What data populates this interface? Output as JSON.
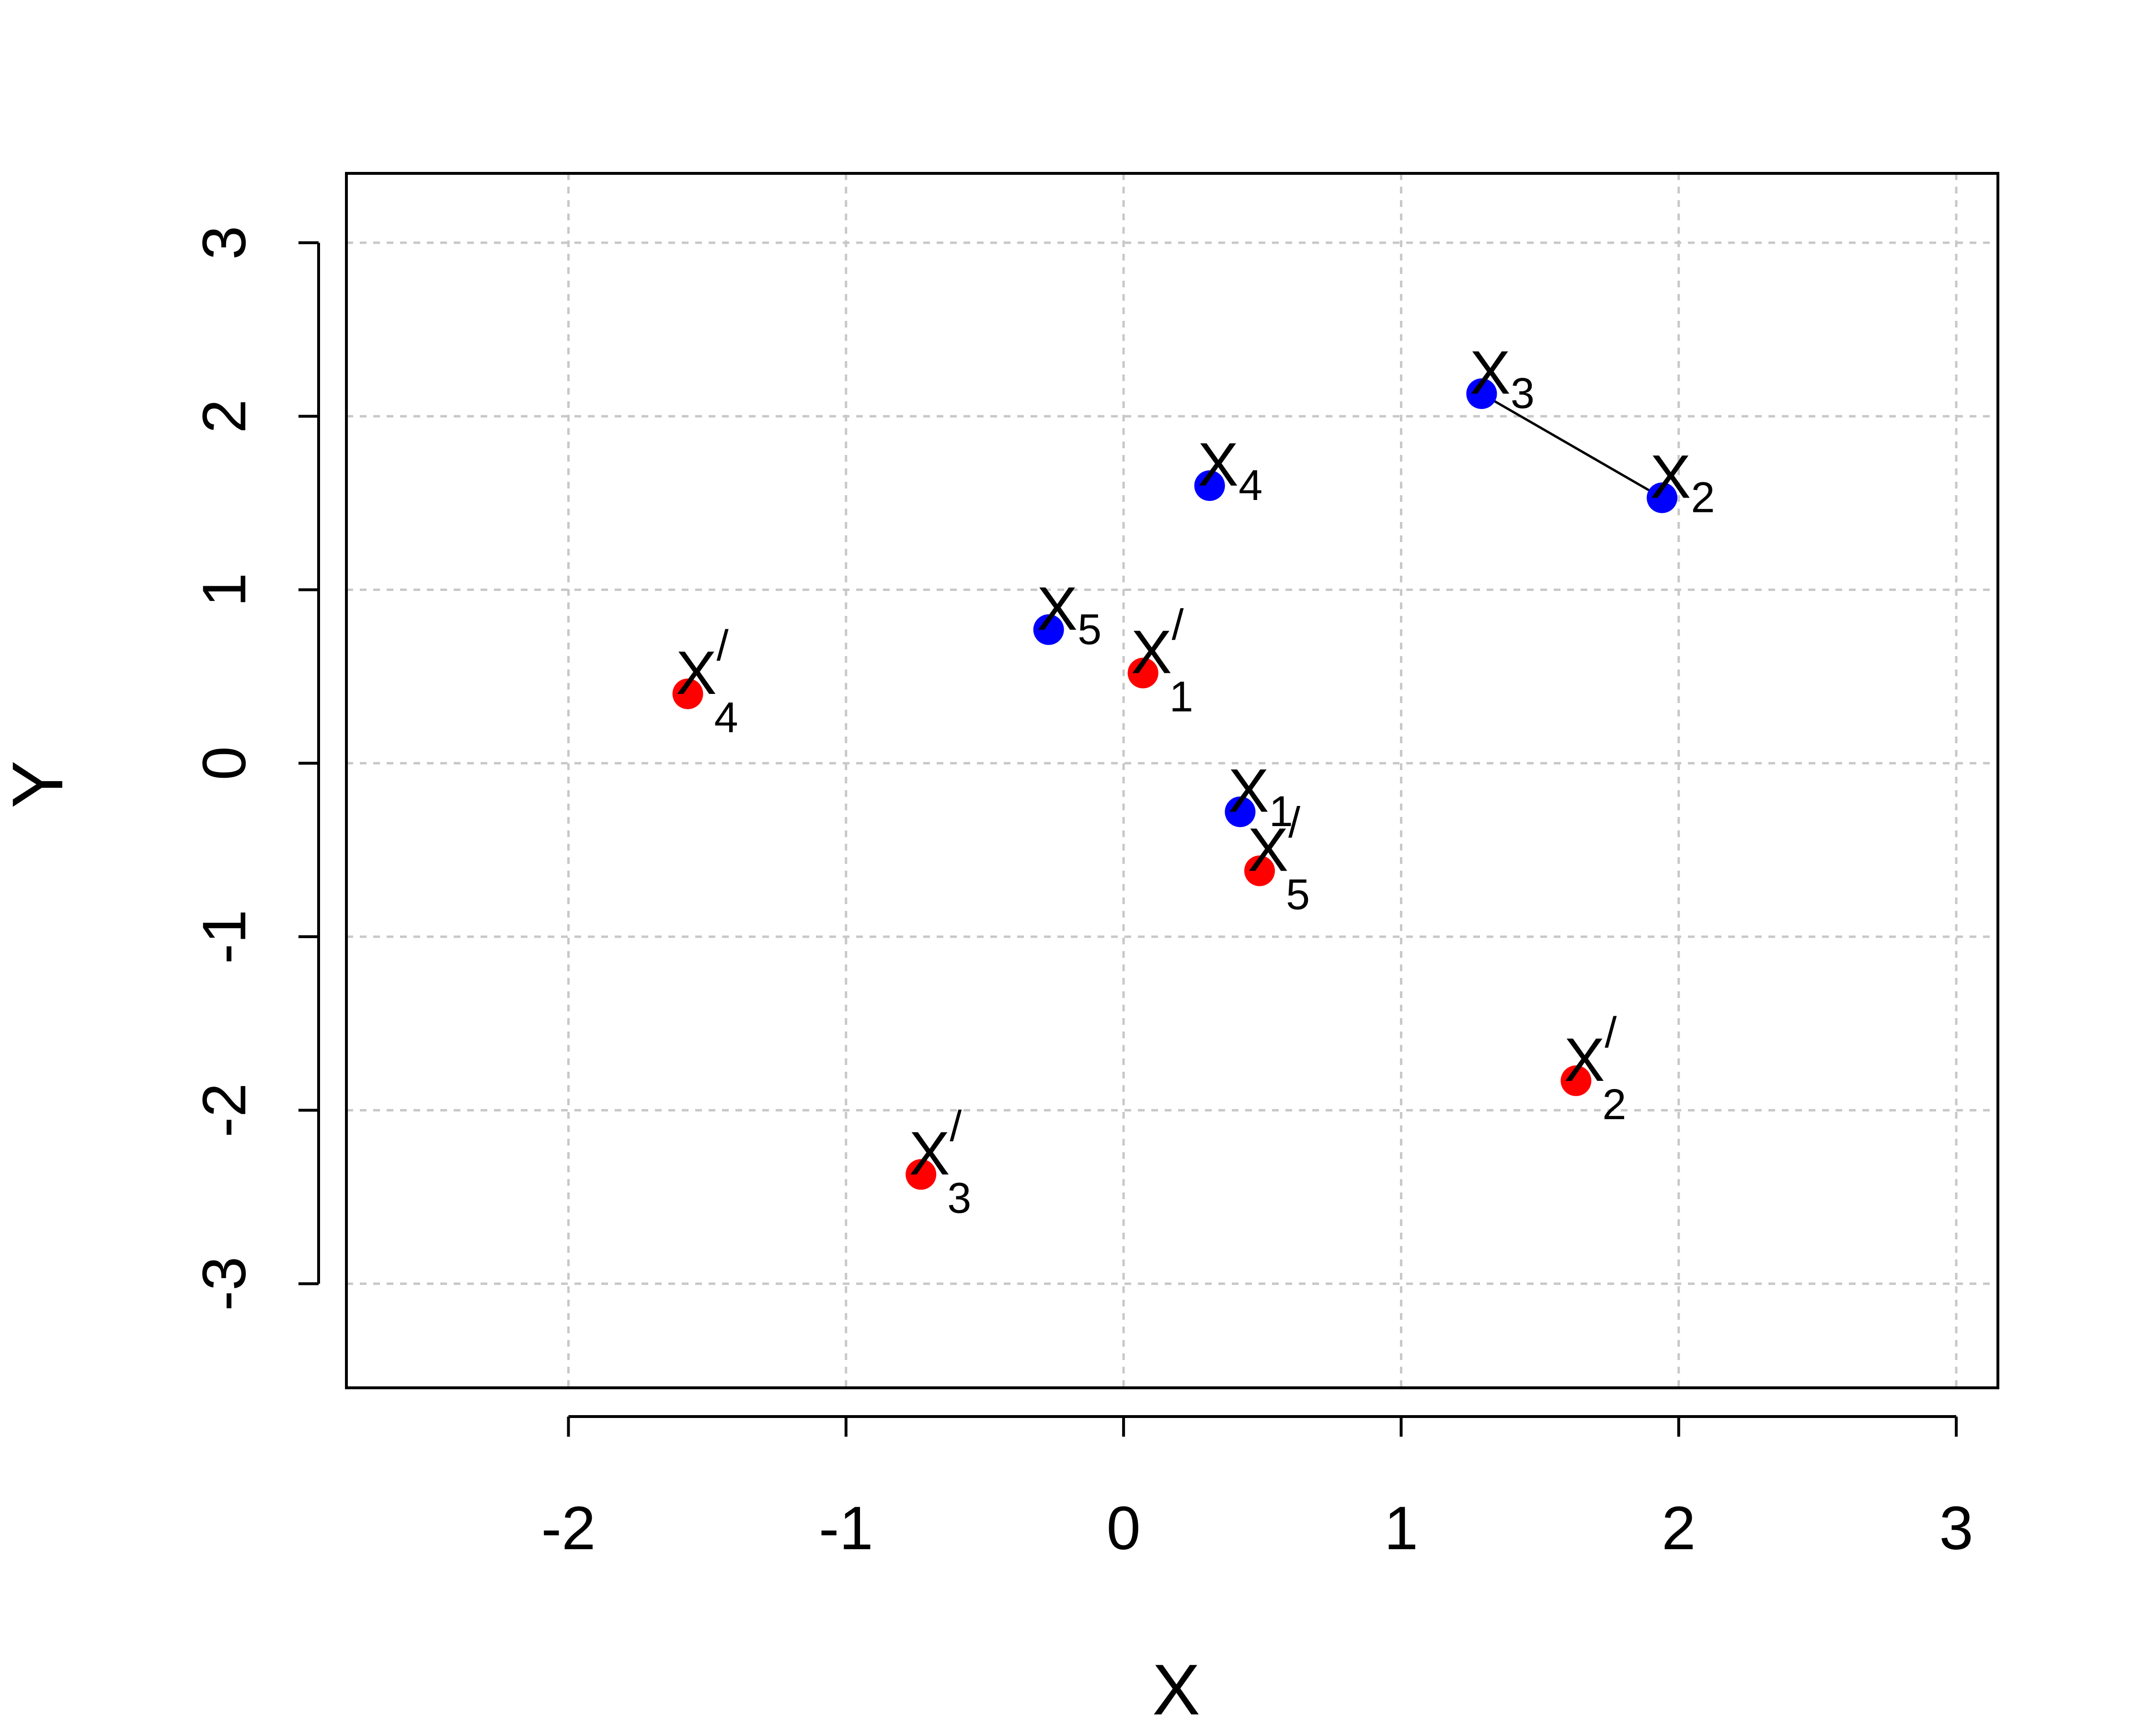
{
  "chart_data": {
    "type": "scatter",
    "xlabel": "X",
    "ylabel": "Y",
    "xlim": [
      -2.8,
      3.15
    ],
    "ylim": [
      -3.6,
      3.4
    ],
    "x_ticks": [
      -2,
      -1,
      0,
      1,
      2,
      3
    ],
    "y_ticks": [
      -3,
      -2,
      -1,
      0,
      1,
      2,
      3
    ],
    "x_tick_labels": [
      "-2",
      "-1",
      "0",
      "1",
      "2",
      "3"
    ],
    "y_tick_labels": [
      "-3",
      "-2",
      "-1",
      "0",
      "1",
      "2",
      "3"
    ],
    "grid": true,
    "series": [
      {
        "color": "#0000ff",
        "points": [
          {
            "x": 0.42,
            "y": -0.28,
            "label": "X",
            "sub": "1",
            "prime": false
          },
          {
            "x": 1.94,
            "y": 1.53,
            "label": "X",
            "sub": "2",
            "prime": false
          },
          {
            "x": 1.29,
            "y": 2.13,
            "label": "X",
            "sub": "3",
            "prime": false
          },
          {
            "x": 0.31,
            "y": 1.6,
            "label": "X",
            "sub": "4",
            "prime": false
          },
          {
            "x": -0.27,
            "y": 0.77,
            "label": "X",
            "sub": "5",
            "prime": false
          }
        ]
      },
      {
        "color": "#ff0000",
        "points": [
          {
            "x": 0.07,
            "y": 0.52,
            "label": "X",
            "sub": "1",
            "prime": true
          },
          {
            "x": 1.63,
            "y": -1.83,
            "label": "X",
            "sub": "2",
            "prime": true
          },
          {
            "x": -0.73,
            "y": -2.37,
            "label": "X",
            "sub": "3",
            "prime": true
          },
          {
            "x": -1.57,
            "y": 0.4,
            "label": "X",
            "sub": "4",
            "prime": true
          },
          {
            "x": 0.49,
            "y": -0.62,
            "label": "X",
            "sub": "5",
            "prime": true
          }
        ]
      }
    ],
    "segments": [
      {
        "x1": 1.29,
        "y1": 2.13,
        "x2": 1.94,
        "y2": 1.53,
        "color": "#000000"
      }
    ]
  }
}
